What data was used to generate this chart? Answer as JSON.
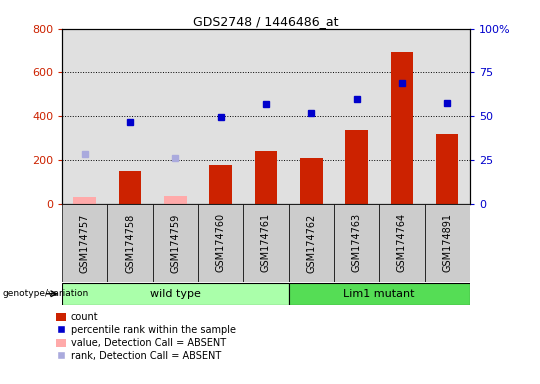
{
  "title": "GDS2748 / 1446486_at",
  "samples": [
    "GSM174757",
    "GSM174758",
    "GSM174759",
    "GSM174760",
    "GSM174761",
    "GSM174762",
    "GSM174763",
    "GSM174764",
    "GSM174891"
  ],
  "count_values": [
    null,
    148,
    null,
    175,
    240,
    210,
    335,
    695,
    320
  ],
  "count_absent_values": [
    30,
    null,
    35,
    null,
    null,
    null,
    null,
    null,
    null
  ],
  "rank_values": [
    null,
    375,
    null,
    395,
    455,
    415,
    480,
    550,
    458
  ],
  "rank_absent_values": [
    225,
    null,
    210,
    null,
    null,
    null,
    null,
    null,
    null
  ],
  "ylim_left": [
    0,
    800
  ],
  "ylim_right": [
    0,
    100
  ],
  "yticks_left": [
    0,
    200,
    400,
    600,
    800
  ],
  "yticks_right": [
    0,
    25,
    50,
    75,
    100
  ],
  "ytick_right_labels": [
    "0",
    "25",
    "50",
    "75",
    "100%"
  ],
  "bar_color": "#CC2200",
  "bar_absent_color": "#FFAAAA",
  "rank_color": "#0000CC",
  "rank_absent_color": "#AAAADD",
  "wildtype_fill": "#AAFFAA",
  "lim1_fill": "#55DD55",
  "sample_bg": "#CCCCCC",
  "wt_count": 5,
  "lm_count": 4,
  "legend_labels": [
    "count",
    "percentile rank within the sample",
    "value, Detection Call = ABSENT",
    "rank, Detection Call = ABSENT"
  ],
  "legend_colors": [
    "#CC2200",
    "#0000CC",
    "#FFAAAA",
    "#AAAADD"
  ]
}
